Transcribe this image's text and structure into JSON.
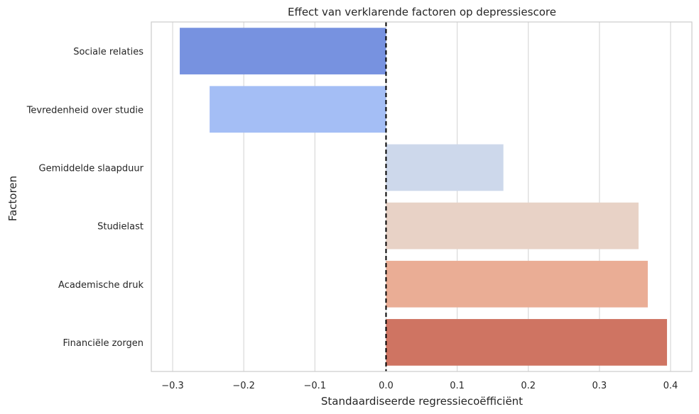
{
  "chart_data": {
    "type": "bar",
    "orientation": "horizontal",
    "title": "Effect van verklarende factoren op depressiescore",
    "xlabel": "Standaardiseerde regressiecoëfficiënt",
    "ylabel": "Factoren",
    "categories": [
      "Sociale relaties",
      "Tevredenheid over studie",
      "Gemiddelde slaapduur",
      "Studielast",
      "Academische druk",
      "Financiële zorgen"
    ],
    "values": [
      -0.29,
      -0.248,
      0.165,
      0.355,
      0.368,
      0.395
    ],
    "colors": [
      "#7792e0",
      "#a4bef5",
      "#cdd8eb",
      "#e8d2c6",
      "#eaad95",
      "#cf7462"
    ],
    "xlim": [
      -0.33,
      0.43
    ],
    "xticks": [
      -0.3,
      -0.2,
      -0.1,
      0.0,
      0.1,
      0.2,
      0.3,
      0.4
    ],
    "xtick_labels": [
      "−0.3",
      "−0.2",
      "−0.1",
      "0.0",
      "0.1",
      "0.2",
      "0.3",
      "0.4"
    ],
    "reference_line": 0.0,
    "grid": "vertical"
  }
}
